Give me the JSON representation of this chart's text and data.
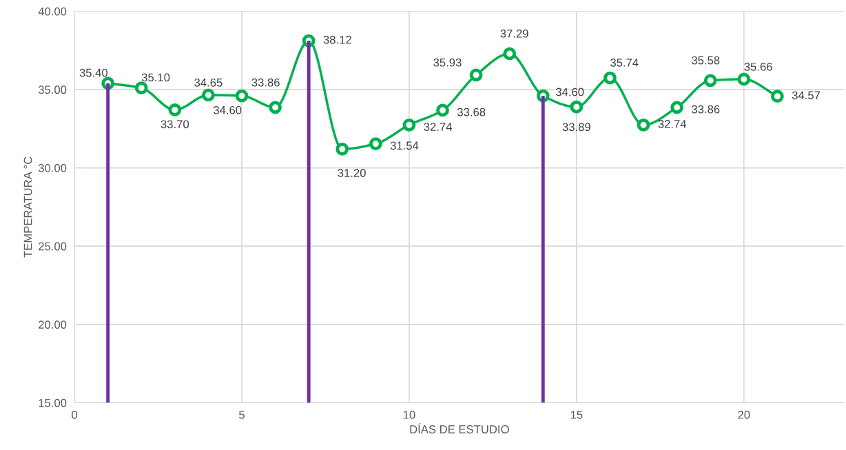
{
  "chart_data": {
    "type": "line",
    "xlabel": "DÍAS DE ESTUDIO",
    "ylabel": "TEMPERATURA °C",
    "xlim": [
      0,
      23
    ],
    "xticks": [
      0,
      5,
      10,
      15,
      20
    ],
    "ylim": [
      15,
      40
    ],
    "yticks": [
      {
        "value": 15,
        "label": "15.00"
      },
      {
        "value": 20,
        "label": "20.00"
      },
      {
        "value": 25,
        "label": "25.00"
      },
      {
        "value": 30,
        "label": "30.00"
      },
      {
        "value": 35,
        "label": "35.00"
      },
      {
        "value": 40,
        "label": "40.00"
      }
    ],
    "grid": true,
    "marker": "circle",
    "line_style": "solid",
    "series": [
      {
        "type": "bar",
        "color": "#7030a0",
        "x": [
          1,
          7,
          14
        ],
        "values": [
          35.4,
          38.12,
          34.6
        ]
      },
      {
        "color": "#00b050",
        "x": [
          1,
          2,
          3,
          4,
          5,
          6,
          7,
          8,
          9,
          10,
          11,
          12,
          13,
          14,
          15,
          16,
          17,
          18,
          19,
          20,
          21
        ],
        "values": [
          35.4,
          35.1,
          33.7,
          34.65,
          34.6,
          33.86,
          38.12,
          31.2,
          31.54,
          32.74,
          33.68,
          35.93,
          37.29,
          34.6,
          33.89,
          35.74,
          32.74,
          33.86,
          35.58,
          35.66,
          34.57
        ],
        "value_labels": [
          "35.40",
          "35.10",
          "33.70",
          "34.65",
          "34.60",
          "33.86",
          "38.12",
          "31.20",
          "31.54",
          "32.74",
          "33.68",
          "35.93",
          "37.29",
          "34.60",
          "33.89",
          "35.74",
          "32.74",
          "33.86",
          "35.58",
          "35.66",
          "34.57"
        ]
      }
    ]
  }
}
